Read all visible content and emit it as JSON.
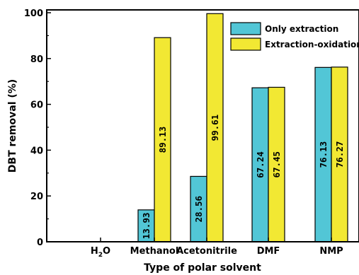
{
  "chart_data": {
    "type": "bar",
    "categories": [
      "H2O",
      "Methanol",
      "Acetonitrile",
      "DMF",
      "NMP"
    ],
    "category_display": [
      {
        "main": "H",
        "sub": "2",
        "tail": "O"
      },
      {
        "main": "Methanol",
        "sub": "",
        "tail": ""
      },
      {
        "main": "Acetonitrile",
        "sub": "",
        "tail": ""
      },
      {
        "main": "DMF",
        "sub": "",
        "tail": ""
      },
      {
        "main": "NMP",
        "sub": "",
        "tail": ""
      }
    ],
    "series": [
      {
        "name": "Only extraction",
        "color": "#52C6D6",
        "values": [
          0,
          13.93,
          28.56,
          67.24,
          76.13
        ],
        "labels": [
          "",
          "13.93",
          "28.56",
          "67.24",
          "76.13"
        ]
      },
      {
        "name": "Extraction-oxidation",
        "color": "#F2E833",
        "values": [
          0,
          89.13,
          99.61,
          67.45,
          76.27
        ],
        "labels": [
          "",
          "89.13",
          "99.61",
          "67.45",
          "76.27"
        ]
      }
    ],
    "xlabel": "Type of polar solvent",
    "ylabel": "DBT removal (%)",
    "ylim": [
      0,
      100
    ],
    "yticks": [
      "0",
      "20",
      "40",
      "60",
      "80",
      "100"
    ],
    "grid": false,
    "legend_position": "top-right"
  }
}
